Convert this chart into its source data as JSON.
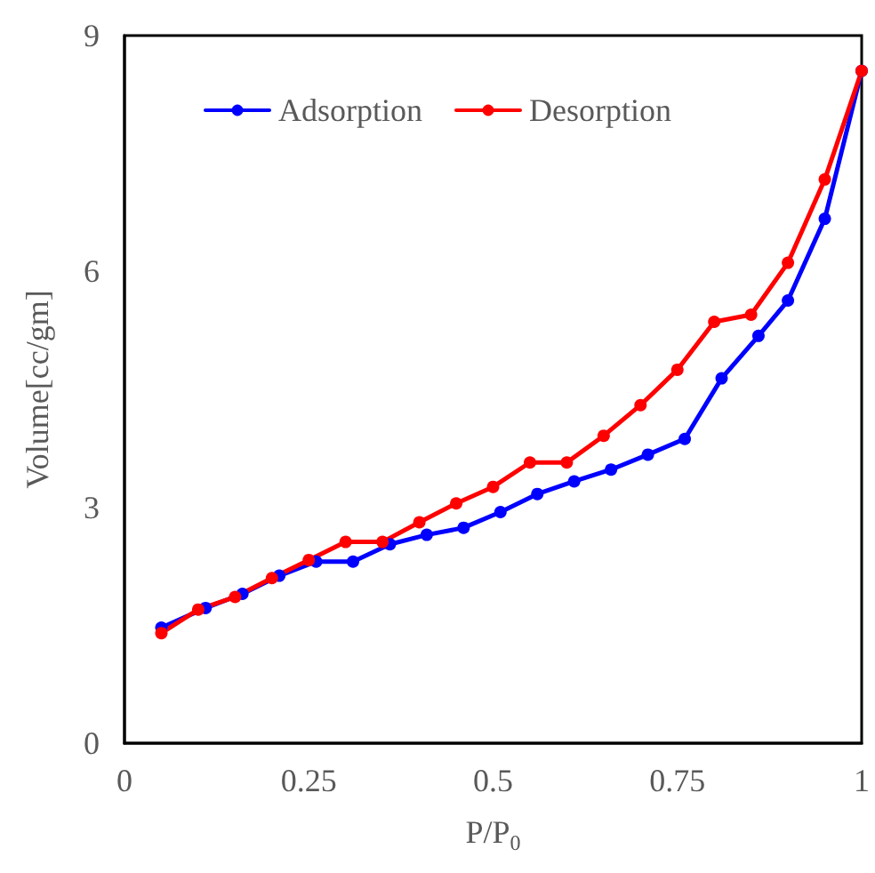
{
  "chart_data": {
    "type": "line",
    "xlabel": "P/P$_{0}$",
    "ylabel": "Volume[cc/gm]",
    "xlim": [
      0,
      1
    ],
    "xticks": [
      0,
      0.25,
      0.5,
      0.75,
      1
    ],
    "ylim": [
      0,
      9
    ],
    "yticks": [
      0,
      3,
      6,
      9
    ],
    "grid": false,
    "legend": "top",
    "marker": "circle",
    "line_style": "solid",
    "series": [
      {
        "name": "Adsorption",
        "color": "#0000ff",
        "x": [
          0.05,
          0.11,
          0.16,
          0.21,
          0.26,
          0.31,
          0.36,
          0.41,
          0.46,
          0.51,
          0.56,
          0.61,
          0.66,
          0.71,
          0.76,
          0.81,
          0.86,
          0.9,
          0.95,
          1.0
        ],
        "values": [
          1.47,
          1.72,
          1.9,
          2.13,
          2.31,
          2.31,
          2.53,
          2.65,
          2.74,
          2.94,
          3.17,
          3.33,
          3.48,
          3.67,
          3.87,
          4.64,
          5.18,
          5.63,
          6.67,
          8.55
        ]
      },
      {
        "name": "Desorption",
        "color": "#ff0000",
        "x": [
          0.05,
          0.1,
          0.15,
          0.2,
          0.25,
          0.3,
          0.35,
          0.4,
          0.45,
          0.5,
          0.55,
          0.6,
          0.65,
          0.7,
          0.75,
          0.8,
          0.85,
          0.9,
          0.95,
          1.0
        ],
        "values": [
          1.4,
          1.7,
          1.86,
          2.1,
          2.33,
          2.56,
          2.56,
          2.81,
          3.05,
          3.26,
          3.57,
          3.57,
          3.91,
          4.3,
          4.75,
          5.36,
          5.45,
          6.11,
          7.17,
          8.55
        ]
      }
    ]
  }
}
